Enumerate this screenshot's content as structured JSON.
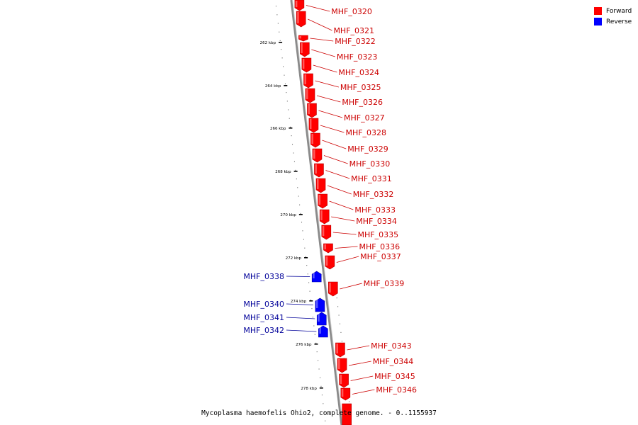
{
  "colors": {
    "forward": "#ff0000",
    "reverse": "#0000ff",
    "forward_label": "#cc0000",
    "reverse_label": "#000099",
    "backbone": "#999999"
  },
  "legend": [
    {
      "label": "Forward",
      "color": "#ff0000"
    },
    {
      "label": "Reverse",
      "color": "#0000ff"
    }
  ],
  "caption": "Mycoplasma haemofelis Ohio2, complete genome. - 0..1155937",
  "ticks": [
    "262 kbp",
    "264 kbp",
    "266 kbp",
    "268 kbp",
    "270 kbp",
    "272 kbp",
    "274 kbp",
    "276 kbp",
    "278 kbp"
  ],
  "genes": [
    {
      "name": "MHF_0320",
      "strand": "forward"
    },
    {
      "name": "MHF_0321",
      "strand": "forward"
    },
    {
      "name": "MHF_0322",
      "strand": "forward"
    },
    {
      "name": "MHF_0323",
      "strand": "forward"
    },
    {
      "name": "MHF_0324",
      "strand": "forward"
    },
    {
      "name": "MHF_0325",
      "strand": "forward"
    },
    {
      "name": "MHF_0326",
      "strand": "forward"
    },
    {
      "name": "MHF_0327",
      "strand": "forward"
    },
    {
      "name": "MHF_0328",
      "strand": "forward"
    },
    {
      "name": "MHF_0329",
      "strand": "forward"
    },
    {
      "name": "MHF_0330",
      "strand": "forward"
    },
    {
      "name": "MHF_0331",
      "strand": "forward"
    },
    {
      "name": "MHF_0332",
      "strand": "forward"
    },
    {
      "name": "MHF_0333",
      "strand": "forward"
    },
    {
      "name": "MHF_0334",
      "strand": "forward"
    },
    {
      "name": "MHF_0335",
      "strand": "forward"
    },
    {
      "name": "MHF_0336",
      "strand": "forward"
    },
    {
      "name": "MHF_0337",
      "strand": "forward"
    },
    {
      "name": "MHF_0338",
      "strand": "reverse"
    },
    {
      "name": "MHF_0339",
      "strand": "forward"
    },
    {
      "name": "MHF_0340",
      "strand": "reverse"
    },
    {
      "name": "MHF_0341",
      "strand": "reverse"
    },
    {
      "name": "MHF_0342",
      "strand": "reverse"
    },
    {
      "name": "MHF_0343",
      "strand": "forward"
    },
    {
      "name": "MHF_0344",
      "strand": "forward"
    },
    {
      "name": "MHF_0345",
      "strand": "forward"
    },
    {
      "name": "MHF_0346",
      "strand": "forward"
    }
  ]
}
